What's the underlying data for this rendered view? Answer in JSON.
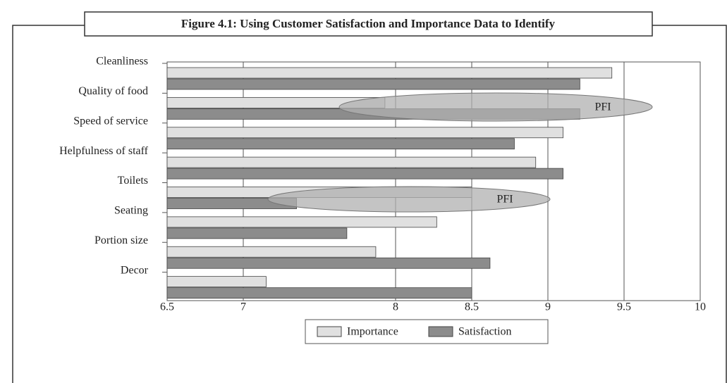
{
  "chart_data": {
    "type": "bar",
    "orientation": "horizontal",
    "title": "Figure 4.1: Using Customer Satisfaction and Importance Data to Identify",
    "categories": [
      "Cleanliness",
      "Quality of food",
      "Speed of service",
      "Helpfulness of staff",
      "Toilets",
      "Seating",
      "Portion size",
      "Decor"
    ],
    "series": [
      {
        "name": "Importance",
        "color": "#e0e0e0",
        "values": [
          9.42,
          7.93,
          9.1,
          8.92,
          8.5,
          8.27,
          7.87,
          7.15
        ]
      },
      {
        "name": "Satisfaction",
        "color": "#8c8c8c",
        "values": [
          9.21,
          9.21,
          8.78,
          9.1,
          7.35,
          7.68,
          8.62,
          8.5
        ]
      }
    ],
    "xlim": [
      6.5,
      10
    ],
    "xticks": [
      6.5,
      7,
      8,
      8.5,
      9,
      9.5,
      10
    ],
    "grid": true,
    "legend": "bottom",
    "annotations": [
      "PFI",
      "PFI"
    ]
  }
}
